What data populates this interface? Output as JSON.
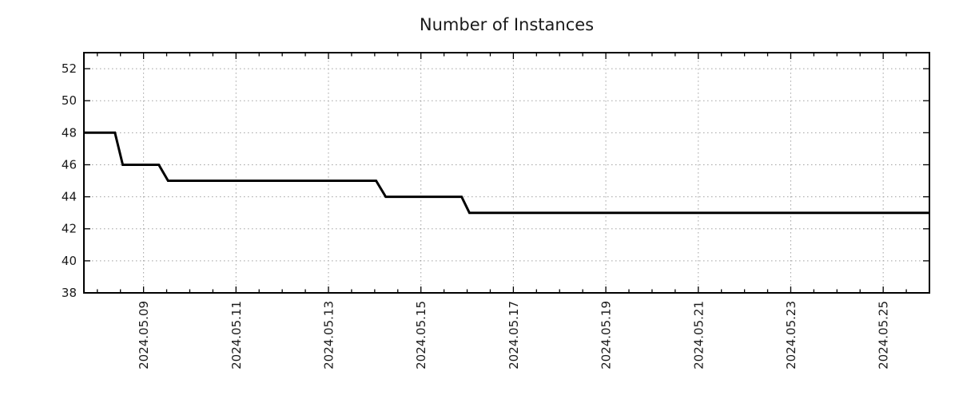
{
  "page": {
    "background_color": "#ffffff"
  },
  "chart_data": {
    "type": "line",
    "subtype": "step-time-series",
    "title": "Number of Instances",
    "xlabel": "",
    "ylabel": "",
    "legend": "none",
    "grid": {
      "visible": true,
      "style": "dotted",
      "color": "#a0a0a0"
    },
    "axis_color": "#000000",
    "label_color": "#1a1a1a",
    "background_color": "#ffffff",
    "x_unit": "day of May 2024",
    "xlim": [
      7.71,
      26.0
    ],
    "ylim": [
      38,
      53
    ],
    "y_ticks": [
      38,
      40,
      42,
      44,
      46,
      48,
      50,
      52
    ],
    "y_minor_tick_step": 0,
    "x_minor_tick_step": 0.5,
    "x_ticks": [
      {
        "value": 9,
        "label": "2024.05.09"
      },
      {
        "value": 11,
        "label": "2024.05.11"
      },
      {
        "value": 13,
        "label": "2024.05.13"
      },
      {
        "value": 15,
        "label": "2024.05.15"
      },
      {
        "value": 17,
        "label": "2024.05.17"
      },
      {
        "value": 19,
        "label": "2024.05.19"
      },
      {
        "value": 21,
        "label": "2024.05.21"
      },
      {
        "value": 23,
        "label": "2024.05.23"
      },
      {
        "value": 25,
        "label": "2024.05.25"
      }
    ],
    "series": [
      {
        "name": "instances",
        "color": "#000000",
        "line_width": 3,
        "points": [
          [
            7.71,
            48
          ],
          [
            8.38,
            48
          ],
          [
            8.55,
            46
          ],
          [
            9.33,
            46
          ],
          [
            9.53,
            45
          ],
          [
            14.03,
            45
          ],
          [
            14.24,
            44
          ],
          [
            15.88,
            44
          ],
          [
            16.05,
            43
          ],
          [
            26.0,
            43
          ]
        ]
      }
    ]
  }
}
